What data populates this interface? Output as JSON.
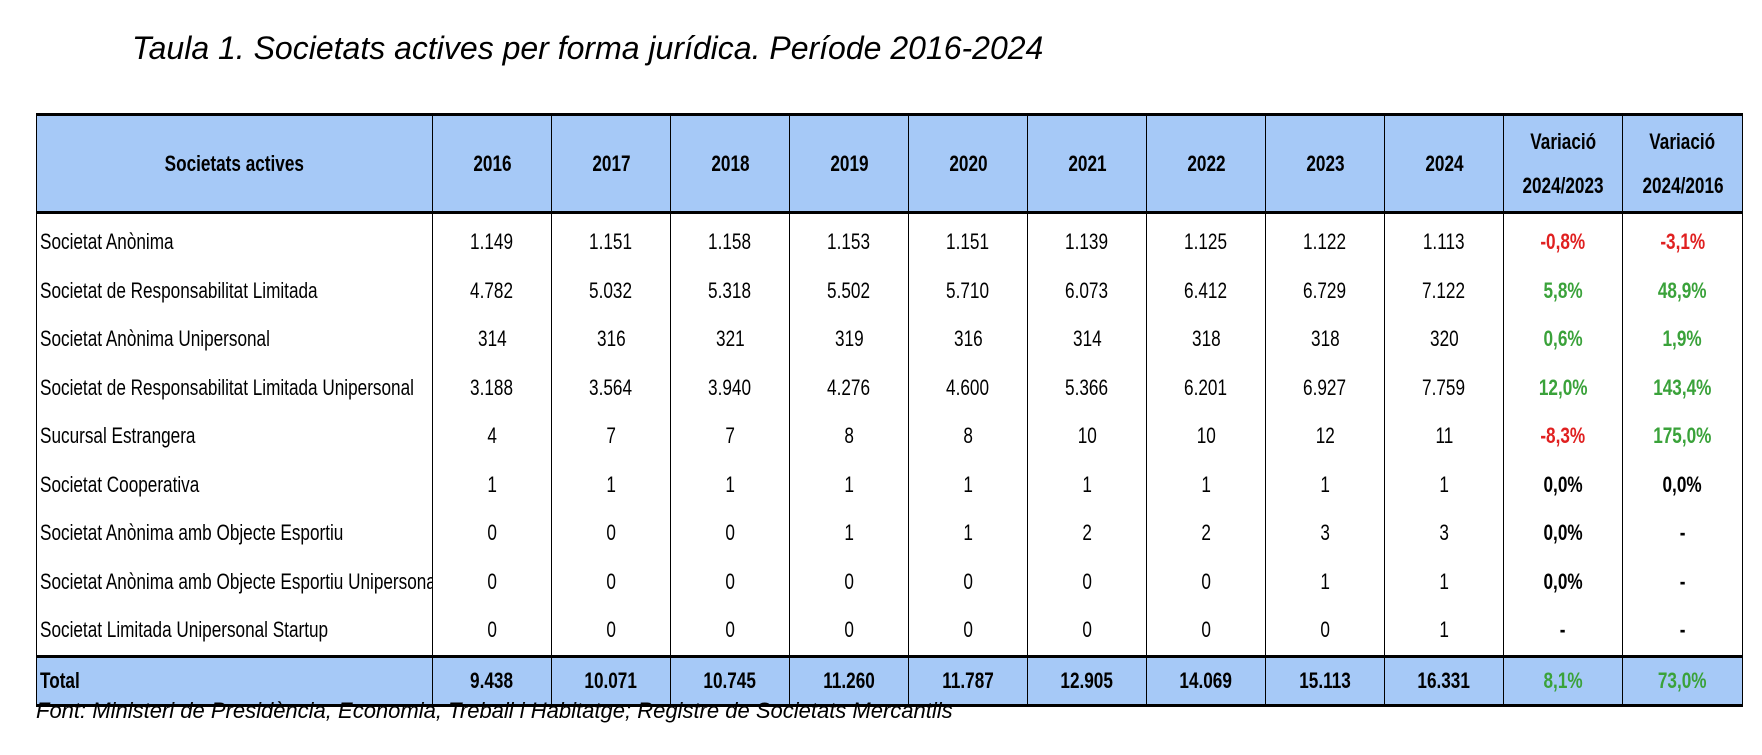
{
  "title": "Taula 1. Societats actives per forma jurídica. Període 2016-2024",
  "header": {
    "label": "Societats actives",
    "years": [
      "2016",
      "2017",
      "2018",
      "2019",
      "2020",
      "2021",
      "2022",
      "2023",
      "2024"
    ],
    "var1_line1": "Variació",
    "var1_line2": "2024/2023",
    "var2_line1": "Variació",
    "var2_line2": "2024/2016"
  },
  "rows": [
    {
      "name": "Societat Anònima",
      "values": [
        "1.149",
        "1.151",
        "1.158",
        "1.153",
        "1.151",
        "1.139",
        "1.125",
        "1.122",
        "1.113"
      ],
      "var1": "-0,8%",
      "var2": "-3,1%"
    },
    {
      "name": "Societat de Responsabilitat Limitada",
      "values": [
        "4.782",
        "5.032",
        "5.318",
        "5.502",
        "5.710",
        "6.073",
        "6.412",
        "6.729",
        "7.122"
      ],
      "var1": "5,8%",
      "var2": "48,9%"
    },
    {
      "name": "Societat Anònima Unipersonal",
      "values": [
        "314",
        "316",
        "321",
        "319",
        "316",
        "314",
        "318",
        "318",
        "320"
      ],
      "var1": "0,6%",
      "var2": "1,9%"
    },
    {
      "name": "Societat de Responsabilitat Limitada Unipersonal",
      "values": [
        "3.188",
        "3.564",
        "3.940",
        "4.276",
        "4.600",
        "5.366",
        "6.201",
        "6.927",
        "7.759"
      ],
      "var1": "12,0%",
      "var2": "143,4%"
    },
    {
      "name": "Sucursal Estrangera",
      "values": [
        "4",
        "7",
        "7",
        "8",
        "8",
        "10",
        "10",
        "12",
        "11"
      ],
      "var1": "-8,3%",
      "var2": "175,0%"
    },
    {
      "name": "Societat Cooperativa",
      "values": [
        "1",
        "1",
        "1",
        "1",
        "1",
        "1",
        "1",
        "1",
        "1"
      ],
      "var1": "0,0%",
      "var2": "0,0%"
    },
    {
      "name": "Societat Anònima amb Objecte Esportiu",
      "values": [
        "0",
        "0",
        "0",
        "1",
        "1",
        "2",
        "2",
        "3",
        "3"
      ],
      "var1": "0,0%",
      "var2": "-"
    },
    {
      "name": "Societat Anònima amb Objecte Esportiu Unipersonal",
      "values": [
        "0",
        "0",
        "0",
        "0",
        "0",
        "0",
        "0",
        "1",
        "1"
      ],
      "var1": "0,0%",
      "var2": "-"
    },
    {
      "name": "Societat Limitada Unipersonal Startup",
      "values": [
        "0",
        "0",
        "0",
        "0",
        "0",
        "0",
        "0",
        "0",
        "1"
      ],
      "var1": "-",
      "var2": "-"
    }
  ],
  "total": {
    "name": "Total",
    "values": [
      "9.438",
      "10.071",
      "10.745",
      "11.260",
      "11.787",
      "12.905",
      "14.069",
      "15.113",
      "16.331"
    ],
    "var1": "8,1%",
    "var2": "73,0%"
  },
  "source": "Font: Ministeri de Presidència, Economia, Treball i Habitatge; Registre de Societats Mercantils",
  "colors": {
    "header_bg": "#a6c9f7",
    "negative": "#e02020",
    "positive": "#3aa23a"
  }
}
